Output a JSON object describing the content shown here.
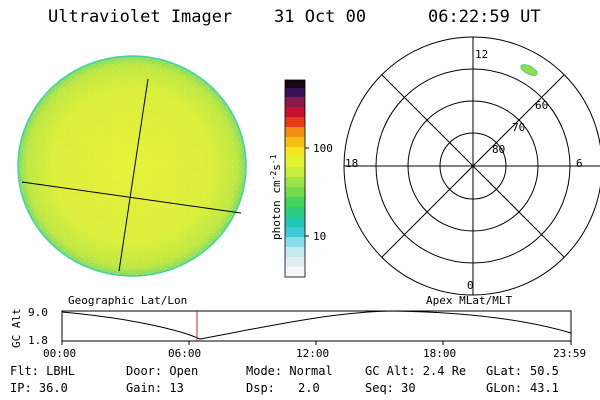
{
  "header": {
    "instrument": "Ultraviolet Imager",
    "date": "31 Oct 00",
    "time": "06:22:59 UT"
  },
  "colorbar": {
    "unit_label": "photon cm",
    "unit_exp1": "-2",
    "unit_mid": "s",
    "unit_exp2": "-1",
    "tick_100": "100",
    "tick_10": "10"
  },
  "polar_plot": {
    "mlt_top": "12",
    "mlt_left": "18",
    "mlt_right": "6",
    "mlt_bottom": "0",
    "lat_60": "60",
    "lat_70": "70",
    "lat_80": "80"
  },
  "map_labels": {
    "left": "Geographic Lat/Lon",
    "right": "Apex MLat/MLT"
  },
  "altitude_plot": {
    "axis_label": "GC Alt",
    "ytick_top": "9.0",
    "ytick_bottom": "1.8",
    "xticks": [
      "00:00",
      "06:00",
      "12:00",
      "18:00",
      "23:59"
    ]
  },
  "info": {
    "row1": [
      "Flt: LBHL",
      "Door: Open",
      "Mode: Normal",
      "GC Alt: 2.4 Re",
      "GLat:",
      "50.5"
    ],
    "row2": [
      "IP: 36.0",
      "Gain: 13",
      "Dsp:",
      "2.0",
      "Seq: 30",
      "GLon:",
      "43.1"
    ]
  },
  "colors": {
    "earth_disk": "#e2f23a",
    "disk_rim": "#3fd4a0",
    "current_time_marker": "#d42020",
    "aurora_patch": "#8fe04a"
  }
}
